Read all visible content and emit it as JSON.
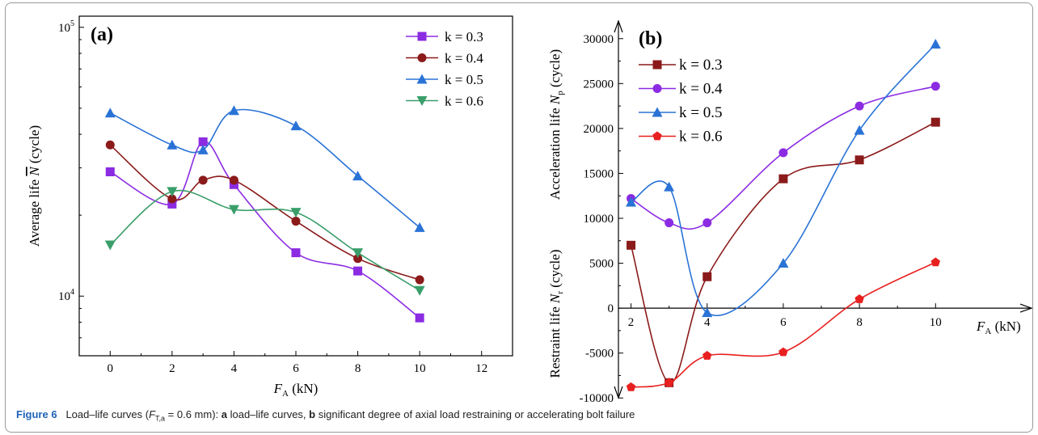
{
  "caption": {
    "figure_label": "Figure 6",
    "text_part1": "Load–life curves (",
    "param_main": "F",
    "param_sub": "T,a",
    "text_part2": " = 0.6 mm): ",
    "a_label": "a",
    "a_text": " load–life curves, ",
    "b_label": "b",
    "b_text": " significant degree of axial load restraining or accelerating bolt failure"
  },
  "chart_data": [
    {
      "type": "line",
      "panel_label": "(a)",
      "xlabel_main": "F",
      "xlabel_sub": "A",
      "xlabel_unit": " (kN)",
      "ylabel_text": "Average life ",
      "ylabel_symbol": "N",
      "ylabel_unit": " (cycle)",
      "xlim": [
        -1,
        13
      ],
      "ylim": [
        6000,
        110000
      ],
      "yscale": "log",
      "x_ticks": [
        0,
        2,
        4,
        6,
        8,
        10,
        12
      ],
      "y_ticks": [
        {
          "value": 10000,
          "base": "10",
          "exp": "4"
        },
        {
          "value": 100000,
          "base": "10",
          "exp": "5"
        }
      ],
      "legend_position": "top-right",
      "series": [
        {
          "name": "k = 0.3",
          "color": "#8b2be2",
          "marker": "square",
          "x": [
            0,
            2,
            3,
            4,
            6,
            8,
            10
          ],
          "y": [
            29000,
            22000,
            37500,
            26000,
            14500,
            12400,
            8300
          ]
        },
        {
          "name": "k = 0.4",
          "color": "#8b1a1a",
          "marker": "circle",
          "x": [
            0,
            2,
            3,
            4,
            6,
            8,
            10
          ],
          "y": [
            36500,
            23000,
            27000,
            27000,
            19000,
            13800,
            11500
          ]
        },
        {
          "name": "k = 0.5",
          "color": "#2a73d6",
          "marker": "triangle-up",
          "x": [
            0,
            2,
            3,
            4,
            6,
            8,
            10
          ],
          "y": [
            48000,
            36500,
            35000,
            49000,
            43000,
            28000,
            18000
          ]
        },
        {
          "name": "k = 0.6",
          "color": "#3a9e6a",
          "marker": "triangle-down",
          "x": [
            0,
            2,
            4,
            6,
            8,
            10
          ],
          "y": [
            15500,
            24500,
            21000,
            20500,
            14500,
            10500
          ]
        }
      ]
    },
    {
      "type": "line",
      "panel_label": "(b)",
      "xlabel_main": "F",
      "xlabel_sub": "A",
      "xlabel_unit": " (kN)",
      "ylabel_upper_text": "Acceleration life ",
      "ylabel_upper_symbol": "N",
      "ylabel_upper_sub": "p",
      "ylabel_upper_unit": " (cycle)",
      "ylabel_lower_text": "Restraint life ",
      "ylabel_lower_symbol": "N",
      "ylabel_lower_sub": "r",
      "ylabel_lower_unit": " (cycle)",
      "xlim": [
        1.5,
        12.5
      ],
      "ylim": [
        -12500,
        32500
      ],
      "x_ticks": [
        2,
        4,
        6,
        8,
        10
      ],
      "y_ticks": [
        -10000,
        -5000,
        0,
        5000,
        10000,
        15000,
        20000,
        25000,
        30000
      ],
      "legend_position": "top-left",
      "series": [
        {
          "name": "k = 0.3",
          "color": "#8b1a1a",
          "marker": "square",
          "x": [
            2,
            3,
            4,
            6,
            8,
            10
          ],
          "y": [
            7000,
            -8300,
            3500,
            14400,
            16500,
            20700
          ]
        },
        {
          "name": "k = 0.4",
          "color": "#8b2be2",
          "marker": "circle",
          "x": [
            2,
            3,
            4,
            6,
            8,
            10
          ],
          "y": [
            12200,
            9500,
            9500,
            17300,
            22500,
            24700
          ]
        },
        {
          "name": "k = 0.5",
          "color": "#2a73d6",
          "marker": "triangle-up",
          "x": [
            2,
            3,
            4,
            6,
            8,
            10
          ],
          "y": [
            11800,
            13500,
            -500,
            5000,
            19800,
            29400
          ]
        },
        {
          "name": "k = 0.6",
          "color": "#e82020",
          "marker": "pentagon",
          "x": [
            2,
            3,
            4,
            6,
            8,
            10
          ],
          "y": [
            -8800,
            -8300,
            -5300,
            -4900,
            1000,
            5100
          ]
        }
      ]
    }
  ]
}
